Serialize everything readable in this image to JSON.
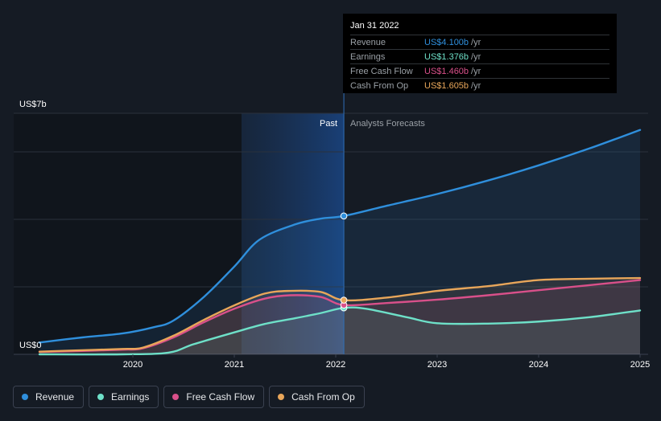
{
  "chart_data": {
    "type": "line",
    "y_unit_label_top": "US$7b",
    "y_unit_label_bottom": "US$0",
    "ylim": [
      0,
      7
    ],
    "x_ticks": [
      "2020",
      "2021",
      "2022",
      "2023",
      "2024",
      "2025"
    ],
    "region_past": "Past",
    "region_forecast": "Analysts Forecasts",
    "series": [
      {
        "name": "Revenue",
        "color": "#2f8fdc",
        "values": [
          [
            2019.0,
            0.35
          ],
          [
            2019.5,
            0.5
          ],
          [
            2019.9,
            0.62
          ],
          [
            2020.2,
            0.8
          ],
          [
            2020.4,
            1.0
          ],
          [
            2020.7,
            1.7
          ],
          [
            2021.0,
            2.6
          ],
          [
            2021.25,
            3.4
          ],
          [
            2021.6,
            3.85
          ],
          [
            2021.85,
            4.02
          ],
          [
            2022.08,
            4.1
          ],
          [
            2022.5,
            4.4
          ],
          [
            2023.0,
            4.75
          ],
          [
            2023.5,
            5.15
          ],
          [
            2024.0,
            5.6
          ],
          [
            2024.5,
            6.1
          ],
          [
            2025.0,
            6.65
          ]
        ]
      },
      {
        "name": "Earnings",
        "color": "#6ee0c8",
        "values": [
          [
            2019.0,
            0.0
          ],
          [
            2019.9,
            0.0
          ],
          [
            2020.35,
            0.05
          ],
          [
            2020.6,
            0.3
          ],
          [
            2021.0,
            0.65
          ],
          [
            2021.3,
            0.9
          ],
          [
            2021.6,
            1.07
          ],
          [
            2021.85,
            1.22
          ],
          [
            2022.08,
            1.376
          ],
          [
            2022.3,
            1.35
          ],
          [
            2022.7,
            1.1
          ],
          [
            2023.0,
            0.92
          ],
          [
            2023.5,
            0.91
          ],
          [
            2024.0,
            0.97
          ],
          [
            2024.5,
            1.1
          ],
          [
            2025.0,
            1.3
          ]
        ]
      },
      {
        "name": "Free Cash Flow",
        "color": "#d9508a",
        "values": [
          [
            2019.0,
            0.07
          ],
          [
            2019.5,
            0.1
          ],
          [
            2019.9,
            0.14
          ],
          [
            2020.1,
            0.18
          ],
          [
            2020.4,
            0.5
          ],
          [
            2020.7,
            0.95
          ],
          [
            2021.0,
            1.35
          ],
          [
            2021.3,
            1.65
          ],
          [
            2021.55,
            1.75
          ],
          [
            2021.85,
            1.7
          ],
          [
            2022.08,
            1.46
          ],
          [
            2022.5,
            1.52
          ],
          [
            2023.0,
            1.62
          ],
          [
            2023.5,
            1.75
          ],
          [
            2024.0,
            1.9
          ],
          [
            2024.5,
            2.05
          ],
          [
            2025.0,
            2.2
          ]
        ]
      },
      {
        "name": "Cash From Op",
        "color": "#e8a65a",
        "values": [
          [
            2019.0,
            0.08
          ],
          [
            2019.5,
            0.12
          ],
          [
            2019.9,
            0.16
          ],
          [
            2020.1,
            0.2
          ],
          [
            2020.4,
            0.55
          ],
          [
            2020.7,
            1.02
          ],
          [
            2021.0,
            1.45
          ],
          [
            2021.3,
            1.8
          ],
          [
            2021.55,
            1.88
          ],
          [
            2021.85,
            1.85
          ],
          [
            2022.08,
            1.605
          ],
          [
            2022.5,
            1.68
          ],
          [
            2023.0,
            1.88
          ],
          [
            2023.5,
            2.02
          ],
          [
            2024.0,
            2.2
          ],
          [
            2024.5,
            2.24
          ],
          [
            2025.0,
            2.26
          ]
        ]
      }
    ],
    "divider_x": 2022.08
  },
  "tooltip": {
    "date": "Jan 31 2022",
    "rows": [
      {
        "name": "Revenue",
        "value": "US$4.100b",
        "unit": "/yr",
        "color": "#2f8fdc"
      },
      {
        "name": "Earnings",
        "value": "US$1.376b",
        "unit": "/yr",
        "color": "#6ee0c8"
      },
      {
        "name": "Free Cash Flow",
        "value": "US$1.460b",
        "unit": "/yr",
        "color": "#d9508a"
      },
      {
        "name": "Cash From Op",
        "value": "US$1.605b",
        "unit": "/yr",
        "color": "#e8a65a"
      }
    ]
  },
  "legend": [
    {
      "label": "Revenue",
      "color": "#2f8fdc"
    },
    {
      "label": "Earnings",
      "color": "#6ee0c8"
    },
    {
      "label": "Free Cash Flow",
      "color": "#d9508a"
    },
    {
      "label": "Cash From Op",
      "color": "#e8a65a"
    }
  ]
}
